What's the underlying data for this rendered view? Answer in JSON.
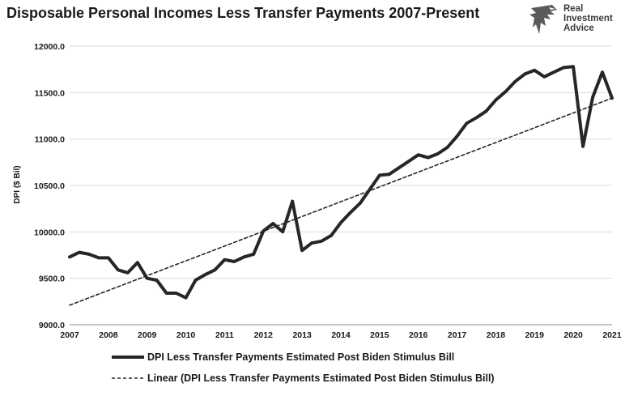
{
  "title": "Disposable Personal Incomes Less Transfer Payments 2007-Present",
  "logo": {
    "line1": "Real",
    "line2": "Investment",
    "line3": "Advice",
    "icon": "eagle-logo-icon"
  },
  "colors": {
    "series": "#262626",
    "trend": "#262626",
    "grid": "#d9d9d9"
  },
  "chart_data": {
    "type": "line",
    "title": "Disposable Personal Incomes Less Transfer Payments 2007-Present",
    "xlabel": "",
    "ylabel": "DPI ($ Bil)",
    "xlim": [
      2007,
      2021
    ],
    "ylim": [
      9000,
      12000
    ],
    "x_ticks": [
      "2007",
      "2008",
      "2009",
      "2010",
      "2011",
      "2012",
      "2013",
      "2014",
      "2015",
      "2016",
      "2017",
      "2018",
      "2019",
      "2020",
      "2021"
    ],
    "y_ticks": [
      "9000.0",
      "9500.0",
      "10000.0",
      "10500.0",
      "11000.0",
      "11500.0",
      "12000.0"
    ],
    "grid": "horizontal",
    "legend_position": "bottom",
    "series": [
      {
        "name": "DPI Less Transfer Payments Estimated Post Biden Stimulus Bill",
        "style": "solid",
        "x": [
          2007.0,
          2007.25,
          2007.5,
          2007.75,
          2008.0,
          2008.25,
          2008.5,
          2008.75,
          2009.0,
          2009.25,
          2009.5,
          2009.75,
          2010.0,
          2010.25,
          2010.5,
          2010.75,
          2011.0,
          2011.25,
          2011.5,
          2011.75,
          2012.0,
          2012.25,
          2012.5,
          2012.75,
          2013.0,
          2013.25,
          2013.5,
          2013.75,
          2014.0,
          2014.25,
          2014.5,
          2014.75,
          2015.0,
          2015.25,
          2015.5,
          2015.75,
          2016.0,
          2016.25,
          2016.5,
          2016.75,
          2017.0,
          2017.25,
          2017.5,
          2017.75,
          2018.0,
          2018.25,
          2018.5,
          2018.75,
          2019.0,
          2019.25,
          2019.5,
          2019.75,
          2020.0,
          2020.25,
          2020.5,
          2020.75,
          2021.0
        ],
        "values": [
          9730,
          9780,
          9760,
          9720,
          9720,
          9590,
          9560,
          9670,
          9500,
          9480,
          9340,
          9340,
          9290,
          9480,
          9540,
          9590,
          9700,
          9680,
          9730,
          9760,
          10010,
          10090,
          10000,
          10330,
          9800,
          9880,
          9900,
          9960,
          10100,
          10210,
          10310,
          10460,
          10610,
          10620,
          10690,
          10760,
          10830,
          10800,
          10840,
          10910,
          11030,
          11170,
          11230,
          11300,
          11420,
          11510,
          11620,
          11700,
          11740,
          11670,
          11720,
          11770,
          11780,
          10920,
          11450,
          11720,
          11440
        ]
      },
      {
        "name": "Linear (DPI Less Transfer Payments Estimated Post Biden Stimulus Bill)",
        "style": "dashed",
        "x": [
          2007.0,
          2021.0
        ],
        "values": [
          9210,
          11440
        ]
      }
    ]
  }
}
